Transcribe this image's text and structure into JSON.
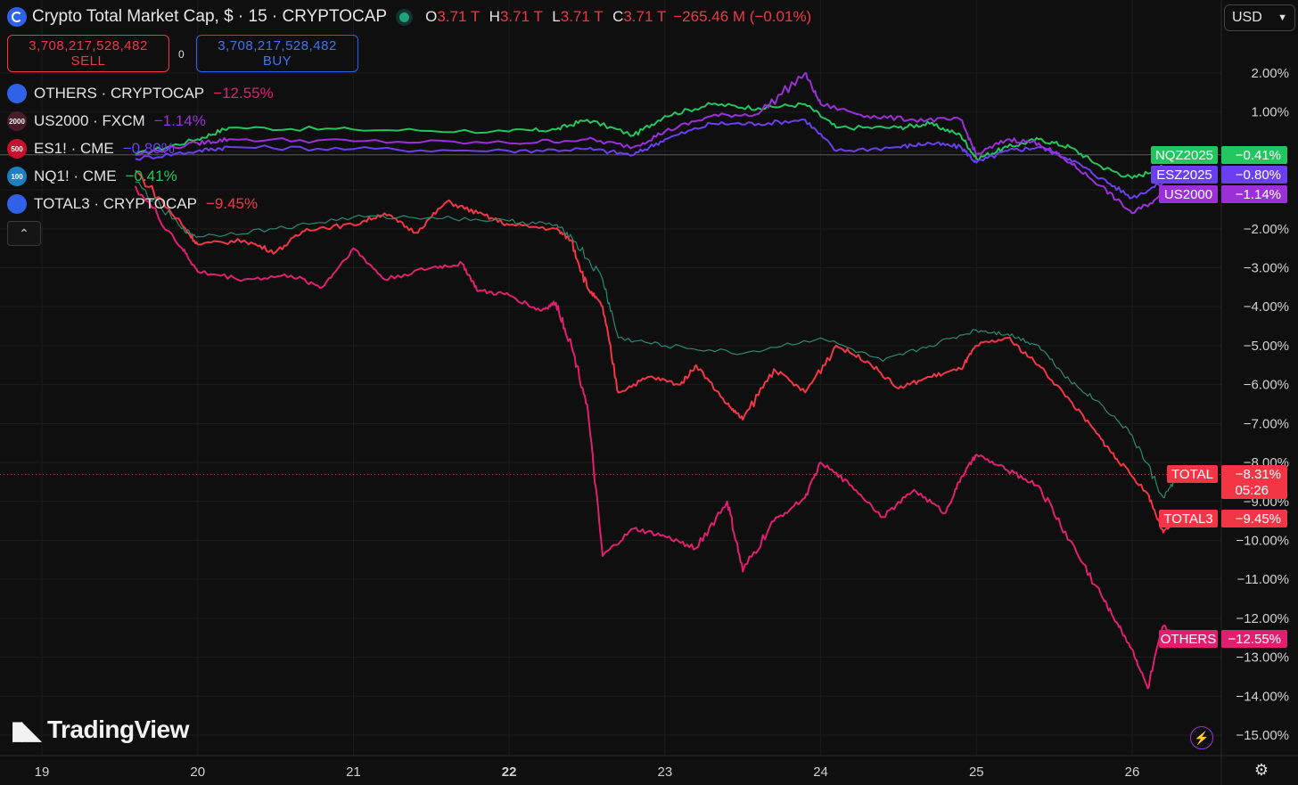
{
  "header": {
    "title": "Crypto Total Market Cap, $ · 15 · CRYPTOCAP",
    "ohlc": [
      {
        "k": "O",
        "v": "3.71 T"
      },
      {
        "k": "H",
        "v": "3.71 T"
      },
      {
        "k": "L",
        "v": "3.71 T"
      },
      {
        "k": "C",
        "v": "3.71 T"
      }
    ],
    "change": "−265.46 M (−0.01%)"
  },
  "trade": {
    "sell_price": "3,708,217,528,482",
    "sell_label": "SELL",
    "spread": "0",
    "buy_price": "3,708,217,528,482",
    "buy_label": "BUY"
  },
  "legend": [
    {
      "name": "OTHERS · CRYPTOCAP",
      "value": "−12.55%",
      "color": "#e0206f",
      "icon": "cryptocap-icon",
      "icon_bg": "#2f62e8",
      "icon_text": ""
    },
    {
      "name": "US2000 · FXCM",
      "value": "−1.14%",
      "color": "#9b30d9",
      "icon": "us2000-icon",
      "icon_bg": "#4a1c2a",
      "icon_text": "2000"
    },
    {
      "name": "ES1! · CME",
      "value": "−0.80%",
      "color": "#6b3ff0",
      "icon": "sp500-icon",
      "icon_bg": "#c8102e",
      "icon_text": "500"
    },
    {
      "name": "NQ1! · CME",
      "value": "−0.41%",
      "color": "#22c55e",
      "icon": "nasdaq100-icon",
      "icon_bg": "#1d7fc1",
      "icon_text": "100"
    },
    {
      "name": "TOTAL3 · CRYPTOCAP",
      "value": "−9.45%",
      "color": "#f23645",
      "icon": "cryptocap-icon",
      "icon_bg": "#2f62e8",
      "icon_text": ""
    }
  ],
  "currency": "USD",
  "brand": "TradingView",
  "price_axis_labels": [
    {
      "text": "NQZ2025",
      "value": "−0.41%",
      "color": "#22c55e"
    },
    {
      "text": "ESZ2025",
      "value": "−0.80%",
      "color": "#6b3ff0"
    },
    {
      "text": "US2000",
      "value": "−1.14%",
      "color": "#9b30d9"
    },
    {
      "text": "TOTAL",
      "value": "−8.31%",
      "sub": "05:26",
      "color": "#f23645"
    },
    {
      "text": "TOTAL3",
      "value": "−9.45%",
      "color": "#f23645"
    },
    {
      "text": "OTHERS",
      "value": "−12.55%",
      "color": "#e0206f"
    }
  ],
  "chart_data": {
    "type": "line",
    "x": [
      "19",
      "20",
      "21",
      "22",
      "23",
      "24",
      "25",
      "26"
    ],
    "y_ticks": [
      "2.00%",
      "1.00%",
      "−2.00%",
      "−3.00%",
      "−4.00%",
      "−5.00%",
      "−6.00%",
      "−7.00%",
      "−8.00%",
      "−9.00%",
      "−10.00%",
      "−11.00%",
      "−12.00%",
      "−13.00%",
      "−14.00%",
      "−15.00%"
    ],
    "ylim": [
      -15.5,
      3
    ],
    "x_unit": "day",
    "series": [
      {
        "name": "NQZ2025",
        "color": "#22c55e",
        "points": [
          [
            19.6,
            -0.1
          ],
          [
            20.0,
            0.3
          ],
          [
            20.2,
            0.6
          ],
          [
            21.0,
            0.55
          ],
          [
            22.0,
            0.5
          ],
          [
            22.3,
            0.55
          ],
          [
            22.5,
            0.8
          ],
          [
            22.8,
            0.4
          ],
          [
            23.0,
            0.9
          ],
          [
            23.3,
            1.2
          ],
          [
            23.6,
            1.1
          ],
          [
            23.9,
            1.2
          ],
          [
            24.1,
            0.6
          ],
          [
            24.5,
            0.6
          ],
          [
            24.7,
            0.7
          ],
          [
            24.9,
            0.4
          ],
          [
            25.0,
            -0.2
          ],
          [
            25.2,
            0.1
          ],
          [
            25.4,
            0.3
          ],
          [
            25.6,
            0.1
          ],
          [
            25.8,
            -0.4
          ],
          [
            26.0,
            -0.7
          ],
          [
            26.2,
            -0.41
          ]
        ]
      },
      {
        "name": "ESZ2025",
        "color": "#6b3ff0",
        "points": [
          [
            19.6,
            -0.2
          ],
          [
            20.0,
            0.0
          ],
          [
            20.2,
            0.1
          ],
          [
            21.0,
            0.05
          ],
          [
            22.0,
            0.0
          ],
          [
            22.5,
            0.05
          ],
          [
            22.8,
            -0.1
          ],
          [
            23.0,
            0.3
          ],
          [
            23.3,
            0.7
          ],
          [
            23.6,
            0.7
          ],
          [
            23.9,
            0.8
          ],
          [
            24.1,
            0.0
          ],
          [
            24.5,
            0.1
          ],
          [
            24.7,
            0.2
          ],
          [
            24.9,
            0.1
          ],
          [
            25.0,
            -0.3
          ],
          [
            25.2,
            0.0
          ],
          [
            25.4,
            0.1
          ],
          [
            25.6,
            -0.2
          ],
          [
            25.8,
            -0.7
          ],
          [
            26.0,
            -1.2
          ],
          [
            26.2,
            -0.8
          ]
        ]
      },
      {
        "name": "US2000",
        "color": "#9b30d9",
        "points": [
          [
            19.6,
            -0.1
          ],
          [
            20.0,
            0.2
          ],
          [
            20.2,
            0.3
          ],
          [
            21.0,
            0.25
          ],
          [
            22.0,
            0.2
          ],
          [
            22.5,
            0.3
          ],
          [
            22.8,
            0.1
          ],
          [
            23.0,
            0.5
          ],
          [
            23.3,
            0.9
          ],
          [
            23.6,
            0.95
          ],
          [
            23.9,
            2.0
          ],
          [
            24.0,
            1.2
          ],
          [
            24.3,
            0.9
          ],
          [
            24.6,
            0.8
          ],
          [
            24.9,
            0.8
          ],
          [
            25.0,
            -0.1
          ],
          [
            25.2,
            0.3
          ],
          [
            25.4,
            0.2
          ],
          [
            25.6,
            -0.3
          ],
          [
            25.8,
            -0.9
          ],
          [
            26.0,
            -1.6
          ],
          [
            26.2,
            -1.14
          ]
        ]
      },
      {
        "name": "TOTAL3",
        "color": "#f23645",
        "points": [
          [
            19.6,
            -0.5
          ],
          [
            19.9,
            -1.9
          ],
          [
            20.0,
            -2.4
          ],
          [
            20.3,
            -2.3
          ],
          [
            20.5,
            -2.6
          ],
          [
            20.7,
            -2.0
          ],
          [
            21.0,
            -1.9
          ],
          [
            21.2,
            -1.6
          ],
          [
            21.4,
            -2.1
          ],
          [
            21.6,
            -1.3
          ],
          [
            21.8,
            -1.6
          ],
          [
            22.0,
            -1.9
          ],
          [
            22.3,
            -2.0
          ],
          [
            22.4,
            -2.3
          ],
          [
            22.5,
            -3.5
          ],
          [
            22.6,
            -4.0
          ],
          [
            22.7,
            -6.2
          ],
          [
            22.9,
            -5.8
          ],
          [
            23.1,
            -6.0
          ],
          [
            23.2,
            -5.5
          ],
          [
            23.4,
            -6.5
          ],
          [
            23.5,
            -6.9
          ],
          [
            23.7,
            -5.6
          ],
          [
            23.9,
            -6.2
          ],
          [
            24.1,
            -5.0
          ],
          [
            24.3,
            -5.4
          ],
          [
            24.5,
            -6.1
          ],
          [
            24.7,
            -5.8
          ],
          [
            24.9,
            -5.6
          ],
          [
            25.0,
            -5.0
          ],
          [
            25.2,
            -4.8
          ],
          [
            25.4,
            -5.5
          ],
          [
            25.6,
            -6.4
          ],
          [
            25.8,
            -7.4
          ],
          [
            25.9,
            -7.9
          ],
          [
            26.1,
            -8.8
          ],
          [
            26.2,
            -9.8
          ],
          [
            26.3,
            -9.45
          ]
        ]
      },
      {
        "name": "TOTAL",
        "color": "#2a8a6e",
        "points": [
          [
            19.6,
            -0.8
          ],
          [
            19.9,
            -2.0
          ],
          [
            20.0,
            -2.2
          ],
          [
            20.5,
            -2.0
          ],
          [
            21.0,
            -1.7
          ],
          [
            21.5,
            -1.7
          ],
          [
            22.0,
            -1.8
          ],
          [
            22.3,
            -1.9
          ],
          [
            22.4,
            -2.2
          ],
          [
            22.6,
            -3.3
          ],
          [
            22.7,
            -4.8
          ],
          [
            23.0,
            -5.0
          ],
          [
            23.5,
            -5.2
          ],
          [
            24.0,
            -4.8
          ],
          [
            24.4,
            -5.4
          ],
          [
            24.7,
            -5.0
          ],
          [
            25.0,
            -4.6
          ],
          [
            25.2,
            -4.7
          ],
          [
            25.4,
            -5.0
          ],
          [
            25.6,
            -5.9
          ],
          [
            25.8,
            -6.5
          ],
          [
            26.0,
            -7.3
          ],
          [
            26.2,
            -8.9
          ],
          [
            26.3,
            -8.31
          ]
        ]
      },
      {
        "name": "OTHERS",
        "color": "#e0206f",
        "points": [
          [
            19.6,
            -0.9
          ],
          [
            19.9,
            -2.5
          ],
          [
            20.0,
            -3.1
          ],
          [
            20.3,
            -3.3
          ],
          [
            20.6,
            -3.2
          ],
          [
            20.8,
            -3.5
          ],
          [
            21.0,
            -2.5
          ],
          [
            21.2,
            -3.3
          ],
          [
            21.5,
            -3.0
          ],
          [
            21.7,
            -2.9
          ],
          [
            21.8,
            -3.6
          ],
          [
            22.0,
            -3.7
          ],
          [
            22.2,
            -4.1
          ],
          [
            22.3,
            -3.9
          ],
          [
            22.4,
            -5.0
          ],
          [
            22.5,
            -6.5
          ],
          [
            22.6,
            -10.4
          ],
          [
            22.8,
            -9.7
          ],
          [
            23.0,
            -9.9
          ],
          [
            23.2,
            -10.2
          ],
          [
            23.4,
            -9.0
          ],
          [
            23.5,
            -10.8
          ],
          [
            23.7,
            -9.5
          ],
          [
            23.9,
            -8.9
          ],
          [
            24.0,
            -8.0
          ],
          [
            24.2,
            -8.6
          ],
          [
            24.4,
            -9.4
          ],
          [
            24.6,
            -8.7
          ],
          [
            24.8,
            -9.3
          ],
          [
            24.9,
            -8.4
          ],
          [
            25.0,
            -7.8
          ],
          [
            25.2,
            -8.2
          ],
          [
            25.4,
            -8.6
          ],
          [
            25.6,
            -10.0
          ],
          [
            25.8,
            -11.4
          ],
          [
            25.9,
            -12.1
          ],
          [
            26.0,
            -12.8
          ],
          [
            26.1,
            -13.8
          ],
          [
            26.2,
            -12.2
          ],
          [
            26.3,
            -12.55
          ]
        ]
      }
    ],
    "current_price_line": -8.31,
    "reference_line": -0.1
  }
}
